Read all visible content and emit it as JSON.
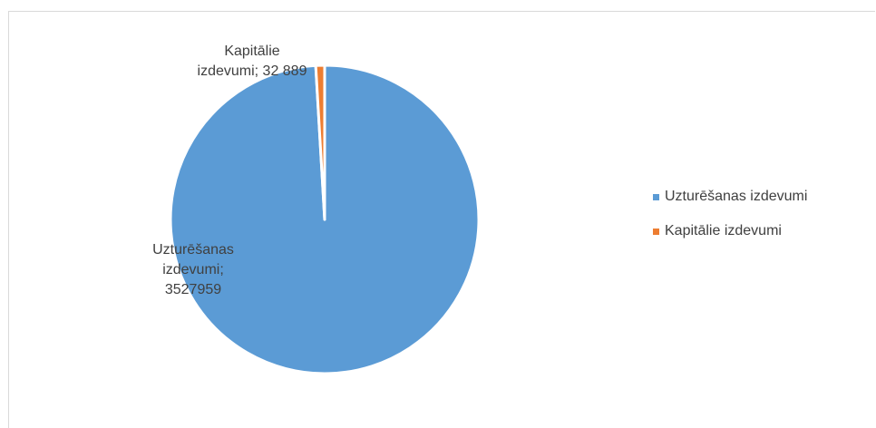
{
  "chart_data": {
    "type": "pie",
    "title": "",
    "slices": [
      {
        "name": "Uzturēšanas izdevumi",
        "value": 3527959,
        "color": "#5b9bd5",
        "label_lines": [
          "Uzturēšanas",
          "izdevumi;",
          "3527959"
        ]
      },
      {
        "name": "Kapitālie izdevumi",
        "value": 32889,
        "color": "#ed7d31",
        "label_lines": [
          "Kapitālie",
          "izdevumi; 32 889"
        ]
      }
    ],
    "legend_position": "right"
  }
}
